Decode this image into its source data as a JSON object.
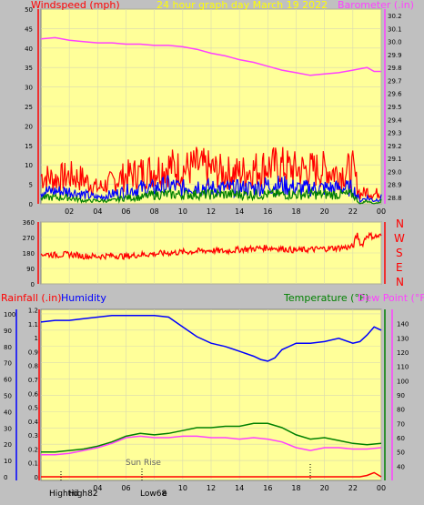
{
  "header": {
    "left": "Windspeed (mph)",
    "center": "24 hour graph day   March 19 2022",
    "right": "Barometer (.in)"
  },
  "compass": [
    "N",
    "W",
    "S",
    "E",
    "N"
  ],
  "lower_header": {
    "rain": "Rainfall (.in)",
    "humidity": "Humidity",
    "temperature": "Temperature (°F)",
    "dewpoint": "Dew Point (°F)"
  },
  "annotations": {
    "sunrise": "Sun Rise",
    "high": "High82",
    "hightide_prefix": "Hightid",
    "low": "Low68",
    "low_suffix": "e"
  },
  "colors": {
    "plot_bg": "#ffff99",
    "frame": "#c0c0c0",
    "grid": "#d9d9b0",
    "wind": "#ff0000",
    "wind_avg": "#0000ff",
    "wind_low": "#008000",
    "barometer": "#ff40ff",
    "direction": "#ff0000",
    "humidity": "#0000ff",
    "temperature": "#008000",
    "dewpoint": "#ff40ff",
    "rain": "#ff0000"
  },
  "chart_data": [
    {
      "type": "line",
      "title": "24 hour graph day   March 19 2022",
      "xlabel": "",
      "x_ticks": [
        "02",
        "04",
        "06",
        "08",
        "10",
        "12",
        "14",
        "16",
        "18",
        "20",
        "22",
        "00"
      ],
      "y_left_label": "Windspeed (mph)",
      "y_left_ticks": [
        0,
        5,
        10,
        15,
        20,
        25,
        30,
        35,
        40,
        45,
        50
      ],
      "y_left_lim": [
        0,
        50
      ],
      "y_right_label": "Barometer (.in)",
      "y_right_ticks": [
        28.8,
        28.9,
        29.0,
        29.1,
        29.2,
        29.3,
        29.4,
        29.5,
        29.6,
        29.7,
        29.8,
        29.9,
        30.0,
        30.1,
        30.2
      ],
      "y_right_lim": [
        28.75,
        30.25
      ],
      "series": [
        {
          "name": "Barometer (.in)",
          "axis": "right",
          "x": [
            0,
            1,
            2,
            3,
            4,
            5,
            6,
            7,
            8,
            9,
            10,
            11,
            12,
            13,
            14,
            15,
            16,
            17,
            18,
            19,
            20,
            21,
            22,
            22.5,
            23,
            23.5,
            24
          ],
          "values": [
            30.02,
            30.03,
            30.01,
            30.0,
            29.99,
            29.99,
            29.98,
            29.98,
            29.97,
            29.97,
            29.96,
            29.94,
            29.91,
            29.89,
            29.86,
            29.84,
            29.81,
            29.78,
            29.76,
            29.74,
            29.75,
            29.76,
            29.78,
            29.79,
            29.8,
            29.77,
            29.77
          ]
        },
        {
          "name": "",
          "axis": "left",
          "x": [
            0,
            1,
            2,
            3,
            4,
            5,
            6,
            7,
            8,
            9,
            10,
            11,
            12,
            13,
            14,
            15,
            16,
            17,
            18,
            19,
            20,
            21,
            22,
            22.5,
            23,
            23.5,
            24
          ],
          "values": [
            9,
            8,
            9,
            8,
            5,
            7,
            9,
            10,
            11,
            12,
            11,
            12,
            11,
            10,
            10,
            11,
            12,
            12,
            11,
            11,
            11,
            10,
            11,
            3,
            4,
            3,
            4
          ]
        },
        {
          "name": "",
          "axis": "left",
          "x": [
            0,
            1,
            2,
            3,
            4,
            5,
            6,
            7,
            8,
            9,
            10,
            11,
            12,
            13,
            14,
            15,
            16,
            17,
            18,
            19,
            20,
            21,
            22,
            22.5,
            23,
            23.5,
            24
          ],
          "values": [
            4,
            4,
            4,
            3,
            2,
            3,
            4,
            5,
            5,
            6,
            5,
            6,
            5,
            5,
            5,
            5,
            6,
            6,
            5,
            5,
            5,
            5,
            5,
            1,
            2,
            1,
            2
          ]
        },
        {
          "name": "",
          "axis": "left",
          "x": [
            0,
            1,
            2,
            3,
            4,
            5,
            6,
            7,
            8,
            9,
            10,
            11,
            12,
            13,
            14,
            15,
            16,
            17,
            18,
            19,
            20,
            21,
            22,
            22.5,
            23,
            23.5,
            24
          ],
          "values": [
            2,
            2,
            2,
            1,
            1,
            1,
            2,
            2,
            3,
            3,
            3,
            3,
            3,
            3,
            3,
            3,
            3,
            3,
            3,
            3,
            3,
            3,
            3,
            0,
            1,
            0,
            1
          ]
        }
      ]
    },
    {
      "type": "line",
      "title": "",
      "x_ticks": [
        "02",
        "04",
        "06",
        "08",
        "10",
        "12",
        "14",
        "16",
        "18",
        "20",
        "22",
        "00"
      ],
      "y_left_ticks": [
        0,
        90,
        180,
        270,
        360
      ],
      "y_left_lim": [
        0,
        360
      ],
      "y_right_labels": [
        "N",
        "W",
        "S",
        "E",
        "N"
      ],
      "series": [
        {
          "name": "",
          "x": [
            0,
            1,
            2,
            3,
            4,
            5,
            6,
            7,
            8,
            9,
            10,
            11,
            12,
            13,
            14,
            15,
            16,
            17,
            18,
            19,
            20,
            21,
            22,
            22.3,
            22.6,
            23,
            23.5,
            24
          ],
          "values": [
            175,
            168,
            172,
            162,
            160,
            165,
            160,
            170,
            175,
            180,
            185,
            190,
            195,
            190,
            200,
            205,
            210,
            205,
            195,
            200,
            205,
            210,
            215,
            290,
            220,
            285,
            275,
            280
          ]
        }
      ]
    },
    {
      "type": "line",
      "title": "",
      "x_ticks": [
        "02",
        "04",
        "06",
        "08",
        "10",
        "12",
        "14",
        "16",
        "18",
        "20",
        "22",
        "00"
      ],
      "y_left_outer_label": "Rainfall (.in)",
      "y_left_outer_ticks": [
        0,
        10,
        20,
        30,
        40,
        50,
        60,
        70,
        80,
        90,
        100
      ],
      "y_left_inner_label": "Humidity",
      "y_left_inner_ticks": [
        0,
        0.1,
        0.2,
        0.3,
        0.4,
        0.5,
        0.6,
        0.7,
        0.8,
        0.9,
        1.0,
        1.1,
        1.2
      ],
      "y_right_label": "Temperature (°F)",
      "y_right_label_2": "Dew Point (°F)",
      "y_right_ticks": [
        40,
        50,
        60,
        70,
        80,
        90,
        100,
        110,
        120,
        130,
        140
      ],
      "y_right_lim": [
        30,
        150
      ],
      "series": [
        {
          "name": "Humidity",
          "axis": "outer",
          "x": [
            0,
            1,
            2,
            3,
            4,
            5,
            6,
            7,
            8,
            9,
            10,
            11,
            12,
            13,
            14,
            15,
            15.5,
            16,
            16.5,
            17,
            18,
            19,
            20,
            21,
            22,
            22.5,
            23,
            23.5,
            24
          ],
          "values": [
            95,
            96,
            96,
            97,
            98,
            99,
            99,
            99,
            99,
            98,
            92,
            86,
            82,
            80,
            77,
            74,
            72,
            71,
            73,
            78,
            82,
            82,
            83,
            85,
            82,
            83,
            87,
            92,
            90
          ]
        },
        {
          "name": "Temperature (°F)",
          "axis": "right",
          "x": [
            0,
            1,
            2,
            3,
            4,
            5,
            6,
            7,
            8,
            9,
            10,
            11,
            12,
            13,
            14,
            15,
            16,
            17,
            18,
            19,
            20,
            21,
            22,
            23,
            24
          ],
          "values": [
            50,
            50,
            51,
            52,
            54,
            57,
            61,
            63,
            62,
            63,
            65,
            67,
            67,
            68,
            68,
            70,
            70,
            67,
            62,
            59,
            60,
            58,
            56,
            55,
            56
          ]
        },
        {
          "name": "Dew Point (°F)",
          "axis": "right",
          "x": [
            0,
            1,
            2,
            3,
            4,
            5,
            6,
            7,
            8,
            9,
            10,
            11,
            12,
            13,
            14,
            15,
            16,
            17,
            18,
            19,
            20,
            21,
            22,
            23,
            24
          ],
          "values": [
            48,
            48,
            49,
            51,
            53,
            56,
            60,
            61,
            60,
            60,
            61,
            61,
            60,
            60,
            59,
            60,
            59,
            57,
            53,
            51,
            53,
            53,
            52,
            52,
            53
          ]
        },
        {
          "name": "Rainfall (.in)",
          "axis": "inner",
          "x": [
            0,
            22.5,
            23,
            23.5,
            24
          ],
          "values": [
            0,
            0,
            0.01,
            0.03,
            0.0
          ]
        }
      ]
    }
  ]
}
